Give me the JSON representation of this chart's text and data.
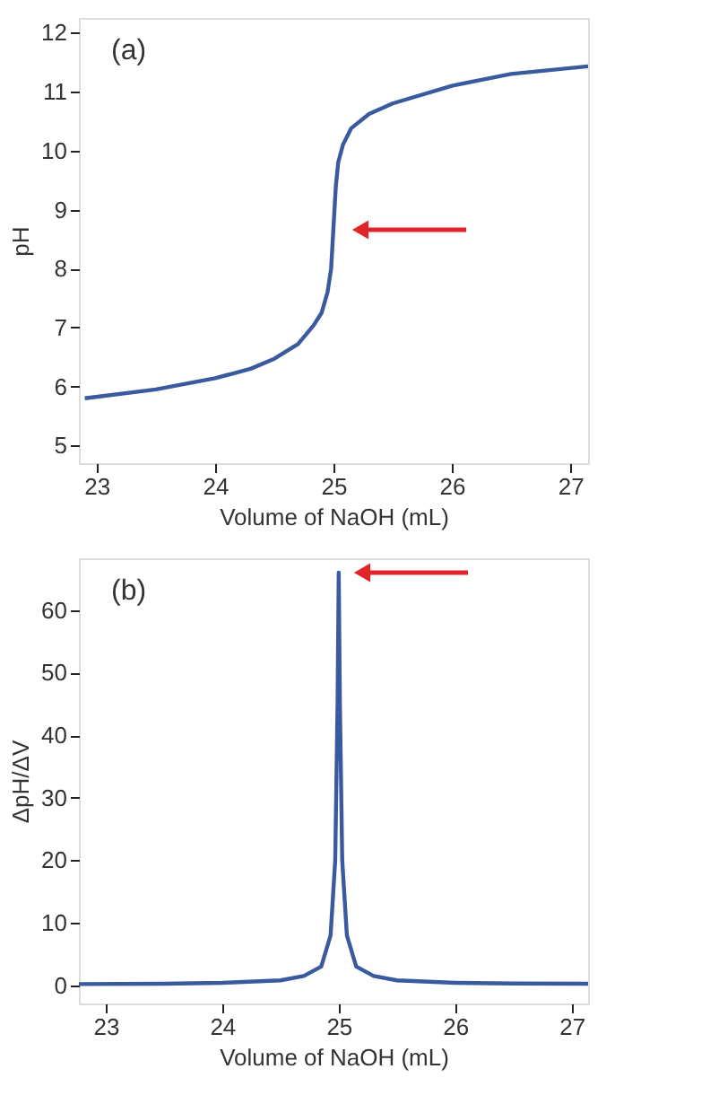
{
  "chart_data": [
    {
      "type": "line",
      "xlabel": "Volume of NaOH (mL)",
      "ylabel": "pH",
      "annotations": [
        "(a)"
      ],
      "x": [
        22.9,
        23.5,
        24.0,
        24.3,
        24.5,
        24.7,
        24.83,
        24.9,
        24.95,
        24.98,
        25.0,
        25.02,
        25.04,
        25.08,
        25.15,
        25.3,
        25.5,
        26.0,
        26.5,
        27.15
      ],
      "series": [
        {
          "color": "#3a5aa0",
          "values": [
            5.8,
            5.95,
            6.14,
            6.3,
            6.47,
            6.72,
            7.03,
            7.25,
            7.6,
            8.0,
            8.7,
            9.4,
            9.8,
            10.1,
            10.38,
            10.62,
            10.8,
            11.1,
            11.3,
            11.43
          ]
        }
      ],
      "xlim": [
        22.85,
        27.15
      ],
      "xticks": [
        23,
        24,
        25,
        26,
        27
      ],
      "ylim": [
        4.7,
        12.25
      ],
      "yticks": [
        5,
        6,
        7,
        8,
        9,
        10,
        11,
        12
      ],
      "grid": false
    },
    {
      "type": "line",
      "xlabel": "Volume of NaOH (mL)",
      "ylabel": "ΔpH/ΔV",
      "annotations": [
        "(b)"
      ],
      "x": [
        22.77,
        23.5,
        24.0,
        24.5,
        24.7,
        24.85,
        24.93,
        24.97,
        24.99,
        25.0,
        25.01,
        25.03,
        25.07,
        25.15,
        25.3,
        25.5,
        26.0,
        26.5,
        27.14
      ],
      "series": [
        {
          "color": "#3a5aa0",
          "values": [
            0.2,
            0.25,
            0.4,
            0.8,
            1.5,
            3,
            8,
            20,
            45,
            66,
            45,
            20,
            8,
            3,
            1.5,
            0.8,
            0.4,
            0.3,
            0.25
          ]
        }
      ],
      "xlim": [
        22.77,
        27.14
      ],
      "xticks": [
        23,
        24,
        25,
        26,
        27
      ],
      "ylim": [
        -2.9,
        68.3
      ],
      "yticks": [
        0,
        10,
        20,
        30,
        40,
        50,
        60
      ],
      "grid": false
    }
  ]
}
